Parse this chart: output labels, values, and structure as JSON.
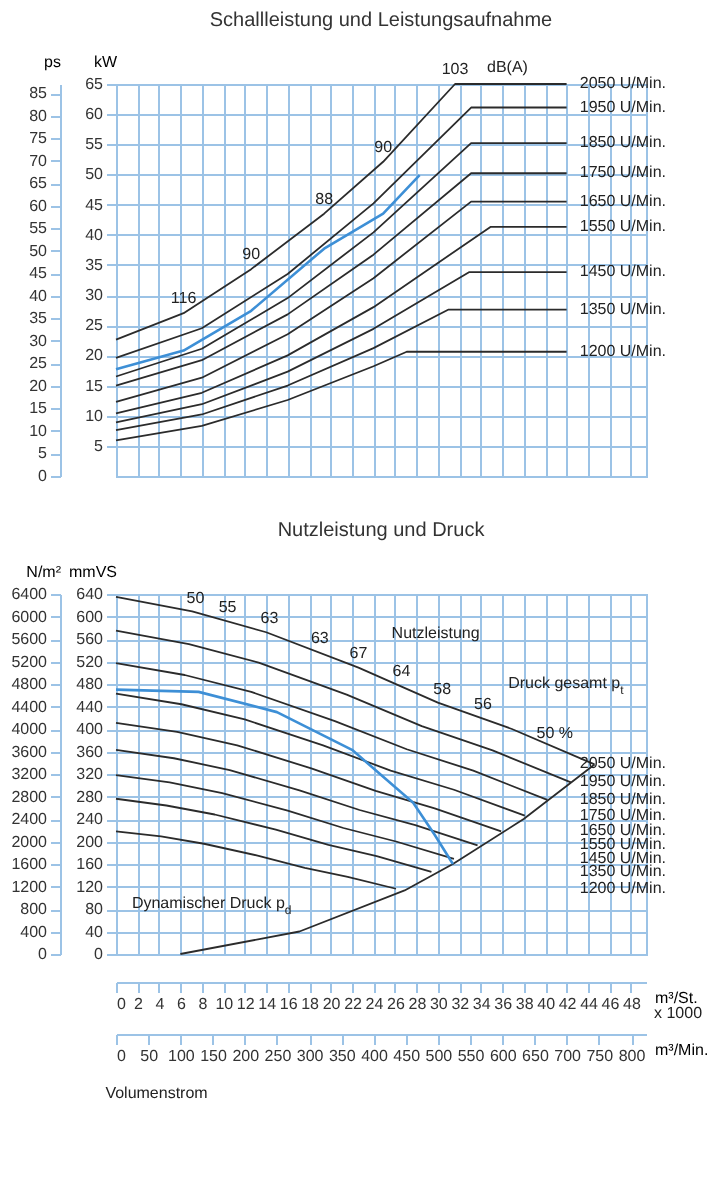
{
  "chart_data": [
    {
      "type": "line",
      "title": "Schallleistung und Leistungsaufnahme",
      "ylabel": "kW",
      "y2label": "ps",
      "xlim": [
        0,
        49.4
      ],
      "xticks": [
        0,
        2,
        4,
        6,
        8,
        10,
        12,
        14,
        16,
        18,
        20,
        22,
        24,
        26,
        28,
        30,
        32,
        34,
        36,
        38,
        40,
        42,
        44,
        46,
        48
      ],
      "ylim": [
        0,
        65
      ],
      "yticks": [
        5,
        10,
        15,
        20,
        25,
        30,
        35,
        40,
        45,
        50,
        55,
        60,
        65
      ],
      "y2lim": [
        0,
        87
      ],
      "y2ticks": [
        0,
        5,
        10,
        15,
        20,
        25,
        30,
        35,
        40,
        45,
        50,
        55,
        60,
        65,
        70,
        75,
        80,
        85
      ],
      "tick_labels": "y",
      "grid": true,
      "series": [
        {
          "name": "2050 U/Min.",
          "color": "#2b2b2b",
          "x": [
            0,
            6.3,
            12.6,
            19.4,
            24.9,
            31.6,
            42
          ],
          "values": [
            22.6,
            27,
            34.3,
            43.5,
            52.1,
            65,
            65
          ]
        },
        {
          "name": "1950 U/Min.",
          "color": "#2b2b2b",
          "x": [
            0,
            8,
            16,
            24,
            33.1,
            42
          ],
          "values": [
            19.6,
            24.5,
            33.5,
            45.2,
            61.1,
            61.1
          ]
        },
        {
          "name": "1850 U/Min.",
          "color": "#2b2b2b",
          "x": [
            0,
            8,
            16,
            24,
            33.1,
            42
          ],
          "values": [
            16.5,
            21.1,
            29.5,
            40.4,
            55.2,
            55.2
          ]
        },
        {
          "name": "1750 U/Min.",
          "color": "#2b2b2b",
          "x": [
            0,
            8,
            16,
            24,
            33.1,
            42
          ],
          "values": [
            15,
            19.2,
            26.8,
            36.7,
            50.2,
            50.2
          ]
        },
        {
          "name": "1650 U/Min.",
          "color": "#2b2b2b",
          "x": [
            0,
            8,
            16,
            24,
            33.1,
            42
          ],
          "values": [
            12.3,
            16.3,
            23.5,
            32.8,
            45.5,
            45.5
          ]
        },
        {
          "name": "1550 U/Min.",
          "color": "#2b2b2b",
          "x": [
            0,
            8,
            16,
            24,
            34.9,
            42
          ],
          "values": [
            10.4,
            13.8,
            20,
            28,
            41.3,
            41.3
          ]
        },
        {
          "name": "1450 U/Min.",
          "color": "#2b2b2b",
          "x": [
            0,
            8,
            16,
            24,
            32.9,
            42
          ],
          "values": [
            8.9,
            11.9,
            17.3,
            24.4,
            33.8,
            33.8
          ]
        },
        {
          "name": "1350 U/Min.",
          "color": "#2b2b2b",
          "x": [
            0,
            8,
            16,
            24,
            31,
            42
          ],
          "values": [
            7.6,
            10.2,
            15,
            21.2,
            27.6,
            27.6
          ]
        },
        {
          "name": "1200 U/Min.",
          "color": "#2b2b2b",
          "x": [
            0,
            8,
            16,
            24,
            27.1,
            42
          ],
          "values": [
            5.9,
            8.3,
            12.6,
            18.2,
            20.6,
            20.6
          ]
        },
        {
          "color": "#3d8fd6",
          "x": [
            0,
            6.3,
            12.6,
            19.4,
            24.9,
            28.3
          ],
          "values": [
            17.7,
            20.8,
            27.4,
            37.7,
            43.5,
            49.9
          ]
        }
      ],
      "annotations": [
        {
          "text": "116",
          "x": 6.3,
          "y": 27
        },
        {
          "text": "90",
          "x": 12.6,
          "y": 34.3
        },
        {
          "text": "88",
          "x": 19.4,
          "y": 43.5
        },
        {
          "text": "90",
          "x": 24.9,
          "y": 52.1
        },
        {
          "text": "103",
          "x": 31.6,
          "y": 65
        },
        "dB(A)"
      ]
    },
    {
      "type": "line",
      "title": "Nutzleistung und Druck",
      "ylabel": "mmVS",
      "y2label": "N/m²",
      "xlabel": "m³/St.",
      "x2label": "m³/Min.",
      "xlim": [
        0,
        49.4
      ],
      "xticks": [
        0,
        2,
        4,
        6,
        8,
        10,
        12,
        14,
        16,
        18,
        20,
        22,
        24,
        26,
        28,
        30,
        32,
        34,
        36,
        38,
        40,
        42,
        44,
        46,
        48
      ],
      "x2lim": [
        0,
        823.3
      ],
      "x2ticks": [
        0,
        50,
        100,
        150,
        200,
        250,
        300,
        350,
        400,
        450,
        500,
        550,
        600,
        650,
        700,
        750,
        800
      ],
      "ylim": [
        0,
        640
      ],
      "yticks": [
        0,
        40,
        80,
        120,
        160,
        200,
        240,
        280,
        320,
        360,
        400,
        440,
        480,
        520,
        560,
        600,
        640
      ],
      "y2lim": [
        0,
        6400
      ],
      "y2ticks": [
        0,
        400,
        800,
        1200,
        1600,
        2000,
        2400,
        2800,
        3200,
        3600,
        4000,
        4400,
        4800,
        5200,
        5600,
        6000,
        6400
      ],
      "grid": true,
      "series": [
        {
          "name": "2050 U/Min.",
          "color": "#2b2b2b",
          "x": [
            0,
            7.1,
            14,
            22.6,
            30,
            36.9,
            44.6
          ],
          "values": [
            635,
            609,
            572,
            509,
            447,
            400,
            337
          ]
        },
        {
          "name": "1950 U/Min.",
          "color": "#2b2b2b",
          "x": [
            0,
            6.8,
            13.3,
            21.5,
            28.5,
            35.1,
            42.4
          ],
          "values": [
            575,
            551,
            518,
            461,
            405,
            362,
            305
          ]
        },
        {
          "name": "1850 U/Min.",
          "color": "#2b2b2b",
          "x": [
            0,
            6.4,
            12.6,
            20.4,
            27.1,
            33.3,
            40.2
          ],
          "values": [
            517,
            496,
            466,
            414,
            364,
            326,
            274
          ]
        },
        {
          "name": "1750 U/Min.",
          "color": "#2b2b2b",
          "x": [
            0,
            6.1,
            12,
            19.3,
            25.6,
            31.5,
            38.1
          ],
          "values": [
            463,
            444,
            417,
            371,
            326,
            292,
            246
          ]
        },
        {
          "name": "1650 U/Min.",
          "color": "#2b2b2b",
          "x": [
            0,
            5.7,
            11.3,
            18.2,
            24.2,
            29.7,
            35.9
          ],
          "values": [
            411,
            395,
            371,
            330,
            290,
            259,
            218
          ]
        },
        {
          "name": "1550 U/Min.",
          "color": "#2b2b2b",
          "x": [
            0,
            5.4,
            10.6,
            17.1,
            22.7,
            27.9,
            33.7
          ],
          "values": [
            363,
            348,
            327,
            291,
            256,
            229,
            193
          ]
        },
        {
          "name": "1450 U/Min.",
          "color": "#2b2b2b",
          "x": [
            0,
            5,
            9.9,
            16,
            21.2,
            26.1,
            31.5
          ],
          "values": [
            318,
            305,
            286,
            255,
            224,
            200,
            169
          ]
        },
        {
          "name": "1350 U/Min.",
          "color": "#2b2b2b",
          "x": [
            0,
            4.7,
            9.2,
            14.9,
            19.8,
            24.3,
            29.4
          ],
          "values": [
            276,
            264,
            248,
            221,
            194,
            174,
            146
          ]
        },
        {
          "name": "1200 U/Min.",
          "color": "#2b2b2b",
          "x": [
            0,
            4.2,
            8.2,
            13.2,
            17.6,
            21.6,
            26.1
          ],
          "values": [
            218,
            209,
            196,
            175,
            153,
            137,
            116
          ]
        },
        {
          "color": "#2b2b2b",
          "x": [
            6,
            17.1,
            26.9,
            31.4,
            38,
            44.6
          ],
          "values": [
            0,
            40,
            113,
            160,
            240,
            337
          ]
        },
        {
          "color": "#3d8fd6",
          "x": [
            0,
            7.7,
            15,
            22,
            27.7,
            29.7,
            31.4
          ],
          "values": [
            470,
            466,
            430,
            363,
            269,
            212,
            160
          ]
        }
      ],
      "annotations": [
        {
          "text": "50",
          "x": 7.4,
          "y": 607
        },
        {
          "text": "55",
          "x": 10.4,
          "y": 591
        },
        {
          "text": "63",
          "x": 14.3,
          "y": 570
        },
        {
          "text": "63",
          "x": 19,
          "y": 535
        },
        {
          "text": "67",
          "x": 22.6,
          "y": 509
        },
        {
          "text": "64",
          "x": 26.6,
          "y": 476
        },
        {
          "text": "58",
          "x": 30.4,
          "y": 444
        },
        {
          "text": "56",
          "x": 34.2,
          "y": 418
        },
        {
          "text": "50 %",
          "x": 40.9,
          "y": 367
        },
        "Nutzleistung",
        "Druck gesamt p$_{t}$",
        "Dynamischer Druck p$_{d}$",
        "x 1000",
        "Volumenstrom"
      ]
    }
  ]
}
